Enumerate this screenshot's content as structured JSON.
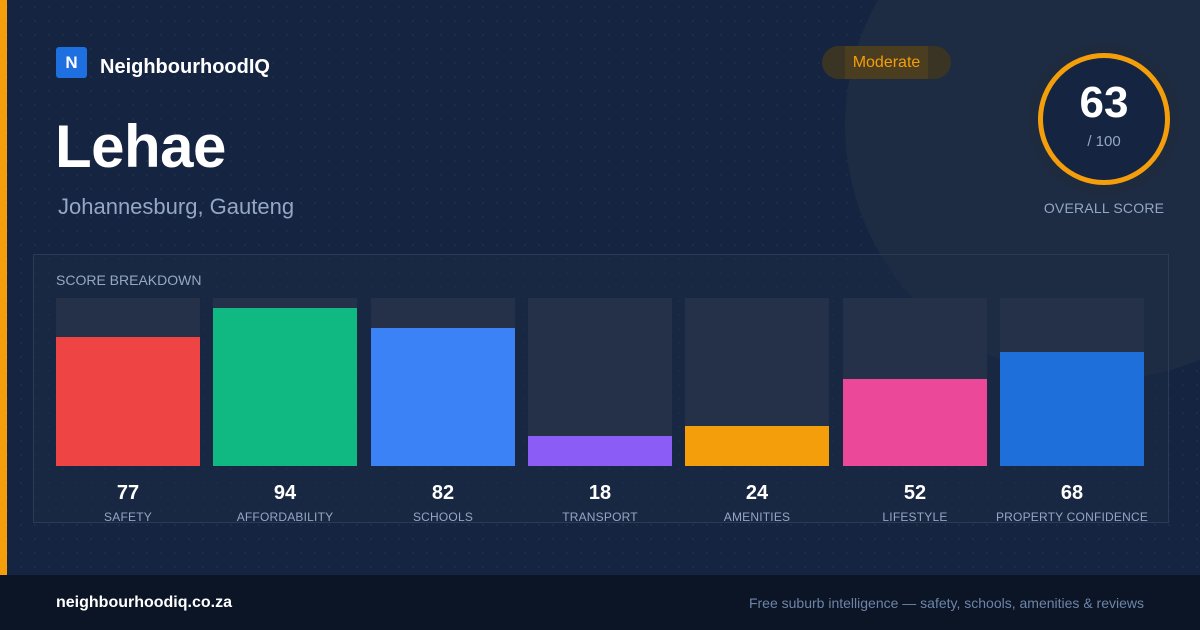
{
  "brand": {
    "logo_letter": "N",
    "name": "NeighbourhoodIQ"
  },
  "rating_badge": {
    "label": "Moderate",
    "color": "#f59e0b"
  },
  "suburb": {
    "name": "Lehae",
    "location": "Johannesburg, Gauteng"
  },
  "overall": {
    "score": "63",
    "max": "/ 100",
    "caption": "OVERALL SCORE",
    "ring_color": "#f59e0b"
  },
  "breakdown": {
    "title": "SCORE BREAKDOWN",
    "items": [
      {
        "label": "SAFETY",
        "value": 77,
        "color": "#ef4444"
      },
      {
        "label": "AFFORDABILITY",
        "value": 94,
        "color": "#10b981"
      },
      {
        "label": "SCHOOLS",
        "value": 82,
        "color": "#3b82f6"
      },
      {
        "label": "TRANSPORT",
        "value": 18,
        "color": "#8b5cf6"
      },
      {
        "label": "AMENITIES",
        "value": 24,
        "color": "#f59e0b"
      },
      {
        "label": "LIFESTYLE",
        "value": 52,
        "color": "#ec4899"
      },
      {
        "label": "PROPERTY CONFIDENCE",
        "value": 68,
        "color": "#1e6fd9"
      }
    ]
  },
  "chart_data": {
    "type": "bar",
    "categories": [
      "SAFETY",
      "AFFORDABILITY",
      "SCHOOLS",
      "TRANSPORT",
      "AMENITIES",
      "LIFESTYLE",
      "PROPERTY CONFIDENCE"
    ],
    "values": [
      77,
      94,
      82,
      18,
      24,
      52,
      68
    ],
    "title": "SCORE BREAKDOWN",
    "ylim": [
      0,
      100
    ]
  },
  "footer": {
    "url": "neighbourhoodiq.co.za",
    "tagline": "Free suburb intelligence — safety, schools, amenities & reviews"
  }
}
